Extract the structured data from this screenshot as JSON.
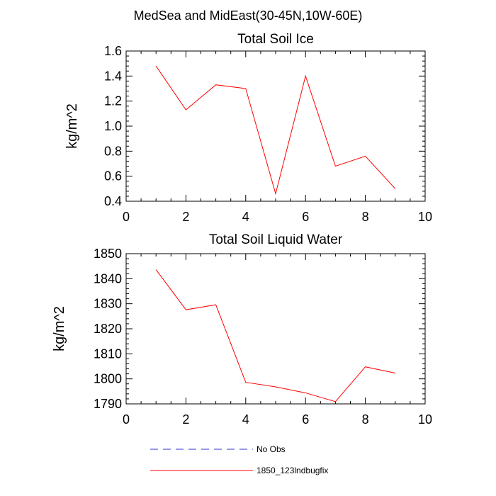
{
  "figure_title": "MedSea and MidEast(30-45N,10W-60E)",
  "chart_data": [
    {
      "type": "line",
      "title": "Total Soil Ice",
      "xlabel": "",
      "ylabel": "kg/m^2",
      "xlim": [
        0,
        10
      ],
      "ylim": [
        0.4,
        1.6
      ],
      "x_ticks": [
        0,
        2,
        4,
        6,
        8,
        10
      ],
      "x_tick_labels": [
        "0",
        "2",
        "4",
        "6",
        "8",
        "10"
      ],
      "y_ticks": [
        0.4,
        0.6,
        0.8,
        1.0,
        1.2,
        1.4,
        1.6
      ],
      "y_tick_labels": [
        "0.4",
        "0.6",
        "0.8",
        "1.0",
        "1.2",
        "1.4",
        "1.6"
      ],
      "series": [
        {
          "name": "1850_123lndbugfix",
          "color": "#ff0000",
          "x": [
            1,
            2,
            3,
            4,
            5,
            6,
            7,
            8,
            9
          ],
          "values": [
            1.48,
            1.13,
            1.33,
            1.3,
            0.46,
            1.4,
            0.68,
            0.76,
            0.5
          ]
        }
      ]
    },
    {
      "type": "line",
      "title": "Total Soil Liquid Water",
      "xlabel": "",
      "ylabel": "kg/m^2",
      "xlim": [
        0,
        10
      ],
      "ylim": [
        1790,
        1850
      ],
      "x_ticks": [
        0,
        2,
        4,
        6,
        8,
        10
      ],
      "x_tick_labels": [
        "0",
        "2",
        "4",
        "6",
        "8",
        "10"
      ],
      "y_ticks": [
        1790,
        1800,
        1810,
        1820,
        1830,
        1840,
        1850
      ],
      "y_tick_labels": [
        "1790",
        "1800",
        "1810",
        "1820",
        "1830",
        "1840",
        "1850"
      ],
      "series": [
        {
          "name": "1850_123lndbugfix",
          "color": "#ff0000",
          "x": [
            1,
            2,
            3,
            4,
            5,
            6,
            7,
            8,
            9
          ],
          "values": [
            1843.6,
            1827.6,
            1829.6,
            1798.6,
            1796.8,
            1794.4,
            1790.9,
            1804.8,
            1802.3
          ]
        }
      ]
    }
  ],
  "legend": {
    "position": "bottom",
    "items": [
      {
        "label": "No Obs",
        "color": "#3333cc",
        "style": "dashed"
      },
      {
        "label": "1850_123lndbugfix",
        "color": "#ff0000",
        "style": "solid"
      }
    ]
  }
}
